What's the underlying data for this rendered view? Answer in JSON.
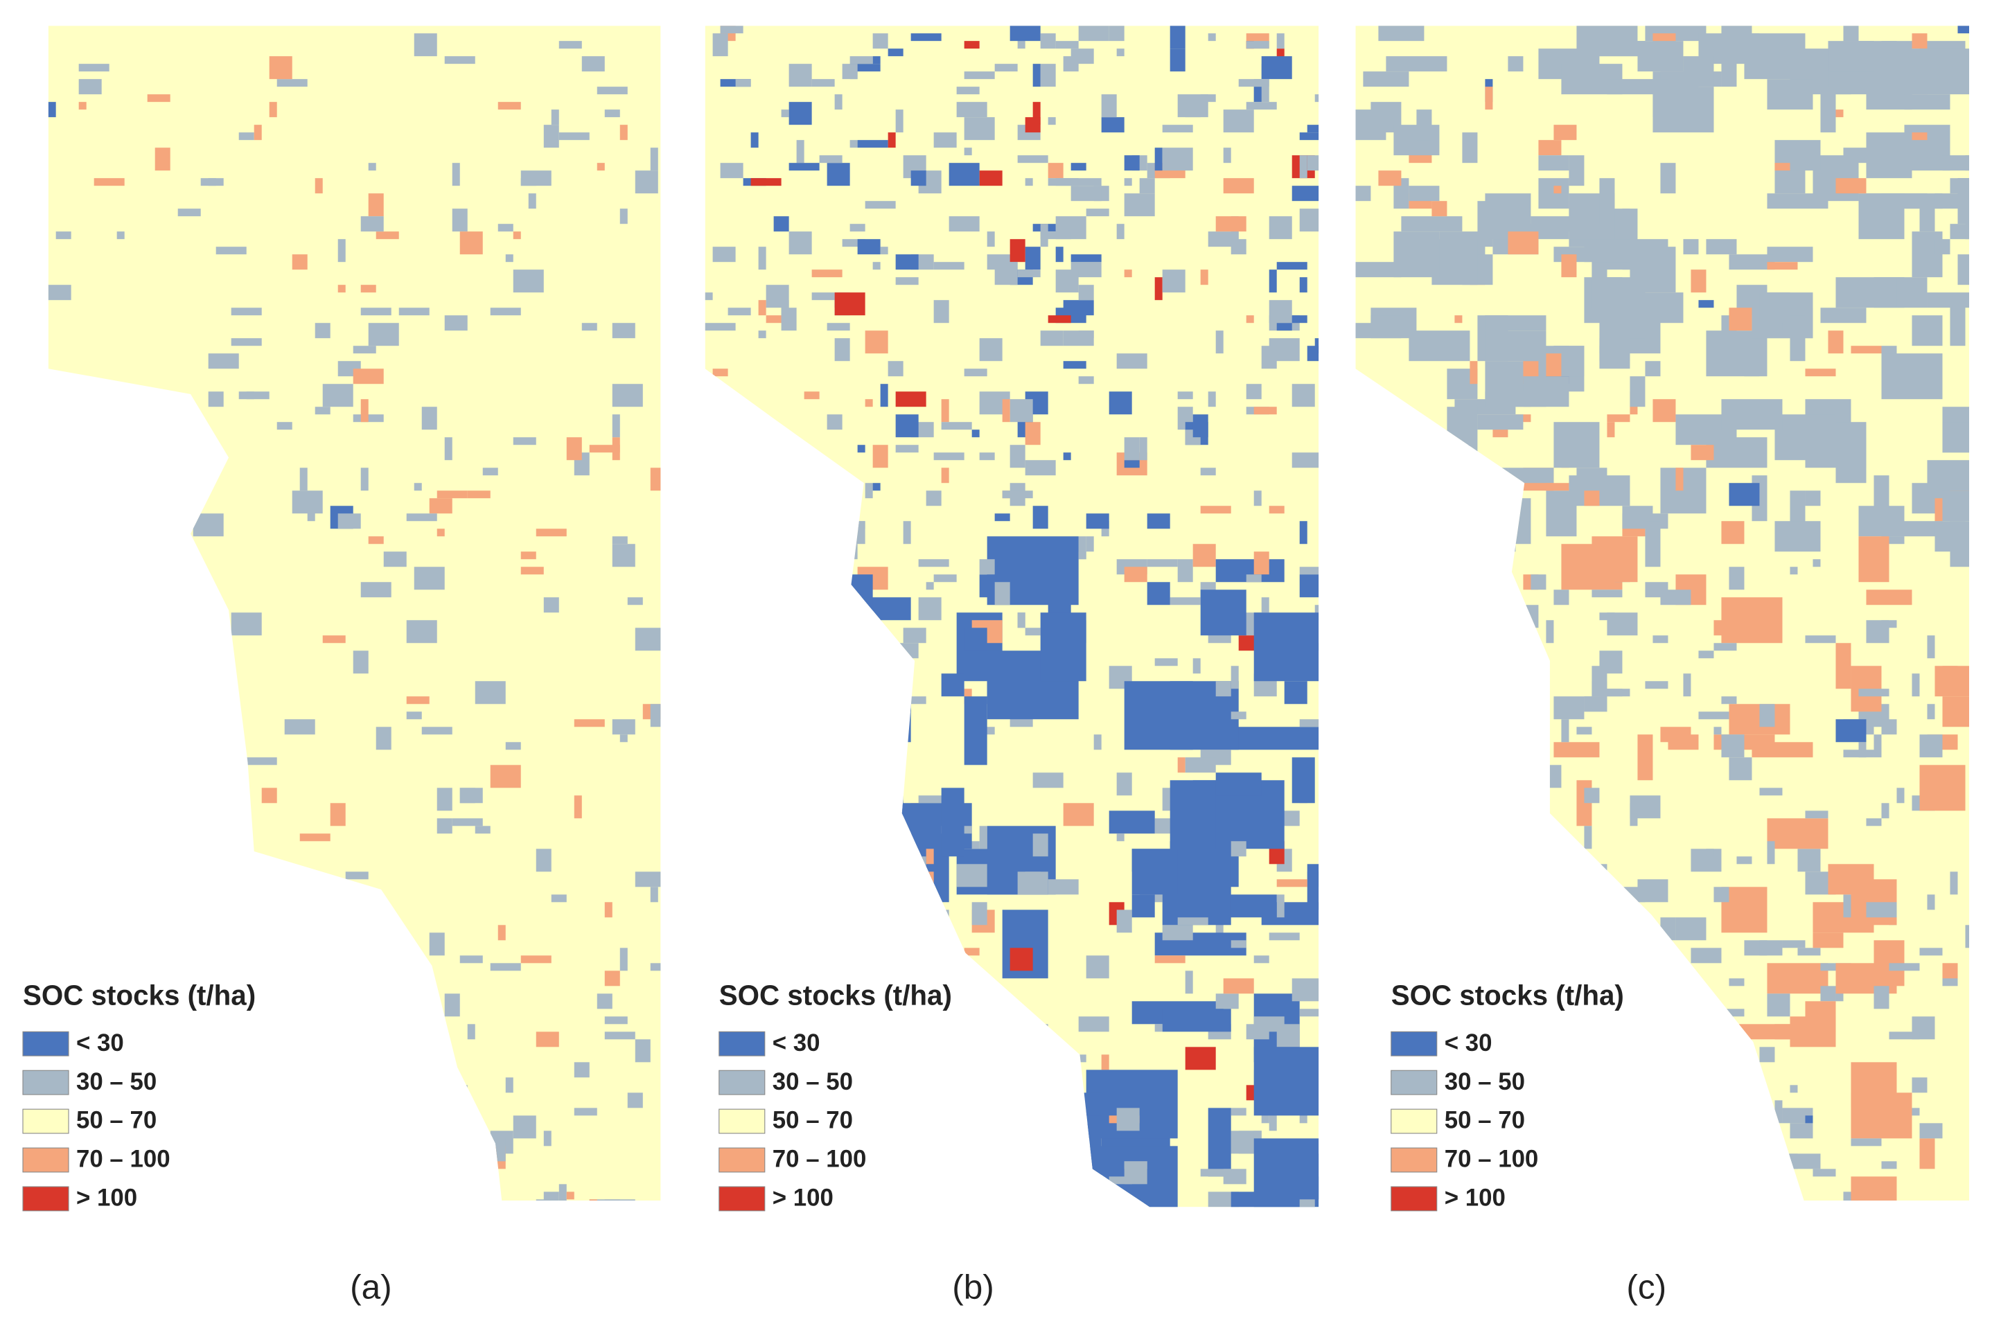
{
  "panels": [
    {
      "legend": {
        "title": "SOC stocks (t/ha)",
        "items": [
          {
            "label": "< 30",
            "color": "#4a75bd"
          },
          {
            "label": "30 – 50",
            "color": "#a7b8c6"
          },
          {
            "label": "50 – 70",
            "color": "#ffffc4"
          },
          {
            "label": "70 – 100",
            "color": "#f5a67c"
          },
          {
            "label": "> 100",
            "color": "#d9372b"
          }
        ]
      },
      "caption": "(a)"
    },
    {
      "legend": {
        "title": "SOC stocks (t/ha)",
        "items": [
          {
            "label": "< 30",
            "color": "#4a75bd"
          },
          {
            "label": "30 – 50",
            "color": "#a7b8c6"
          },
          {
            "label": "50 – 70",
            "color": "#ffffc4"
          },
          {
            "label": "70 – 100",
            "color": "#f5a67c"
          },
          {
            "label": "> 100",
            "color": "#d9372b"
          }
        ]
      },
      "caption": "(b)"
    },
    {
      "legend": {
        "title": "SOC stocks (t/ha)",
        "items": [
          {
            "label": "< 30",
            "color": "#4a75bd"
          },
          {
            "label": "30 – 50",
            "color": "#a7b8c6"
          },
          {
            "label": "50 – 70",
            "color": "#ffffc4"
          },
          {
            "label": "70 – 100",
            "color": "#f5a67c"
          },
          {
            "label": "> 100",
            "color": "#d9372b"
          }
        ]
      },
      "caption": "(c)"
    }
  ]
}
